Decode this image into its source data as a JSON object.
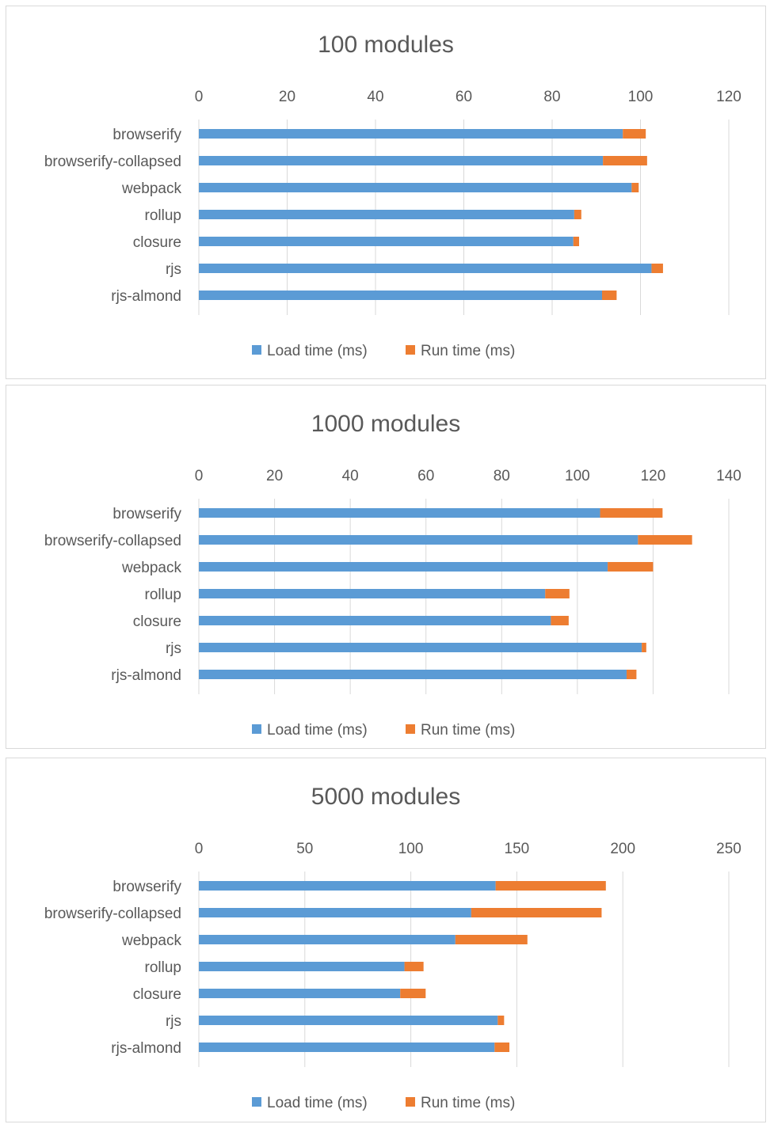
{
  "colors": {
    "load": "#5b9bd5",
    "run": "#ed7d31",
    "grid": "#d9d9d9",
    "text": "#595959"
  },
  "legend": {
    "load": "Load time (ms)",
    "run": "Run time (ms)"
  },
  "chart_data": [
    {
      "type": "bar",
      "orientation": "horizontal",
      "stacked": true,
      "title": "100 modules",
      "categories": [
        "browserify",
        "browserify-collapsed",
        "webpack",
        "rollup",
        "closure",
        "rjs",
        "rjs-almond"
      ],
      "series": [
        {
          "name": "Load time (ms)",
          "values": [
            96,
            91.5,
            98,
            85,
            84.8,
            102.5,
            91.3
          ]
        },
        {
          "name": "Run time (ms)",
          "values": [
            5.2,
            10,
            1.6,
            1.6,
            1.3,
            2.6,
            3.3
          ]
        }
      ],
      "xlim": [
        0,
        120
      ],
      "ticks": [
        0,
        20,
        40,
        60,
        80,
        100,
        120
      ],
      "axis_position": "top",
      "grid": true,
      "legend_position": "bottom"
    },
    {
      "type": "bar",
      "orientation": "horizontal",
      "stacked": true,
      "title": "1000 modules",
      "categories": [
        "browserify",
        "browserify-collapsed",
        "webpack",
        "rollup",
        "closure",
        "rjs",
        "rjs-almond"
      ],
      "series": [
        {
          "name": "Load time (ms)",
          "values": [
            106,
            116,
            108,
            91.5,
            93,
            117,
            113
          ]
        },
        {
          "name": "Run time (ms)",
          "values": [
            16.5,
            14.3,
            12,
            6.4,
            4.7,
            1.2,
            2.6
          ]
        }
      ],
      "xlim": [
        0,
        140
      ],
      "ticks": [
        0,
        20,
        40,
        60,
        80,
        100,
        120,
        140
      ],
      "axis_position": "top",
      "grid": true,
      "legend_position": "bottom"
    },
    {
      "type": "bar",
      "orientation": "horizontal",
      "stacked": true,
      "title": "5000 modules",
      "categories": [
        "browserify",
        "browserify-collapsed",
        "webpack",
        "rollup",
        "closure",
        "rjs",
        "rjs-almond"
      ],
      "series": [
        {
          "name": "Load time (ms)",
          "values": [
            140,
            128.5,
            121,
            97,
            95,
            141,
            139.5
          ]
        },
        {
          "name": "Run time (ms)",
          "values": [
            52,
            61.5,
            34,
            9,
            12,
            3,
            7
          ]
        }
      ],
      "xlim": [
        0,
        250
      ],
      "ticks": [
        0,
        50,
        100,
        150,
        200,
        250
      ],
      "axis_position": "top",
      "grid": true,
      "legend_position": "bottom"
    }
  ]
}
